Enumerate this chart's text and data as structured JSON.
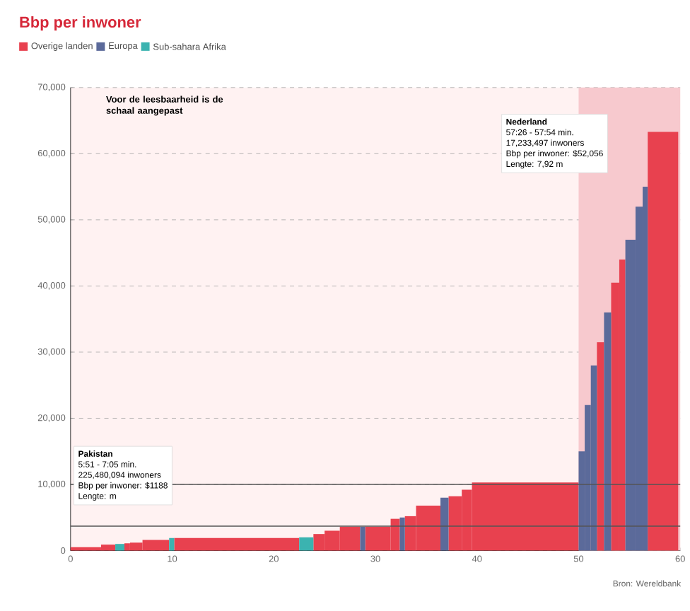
{
  "chart_data": {
    "type": "histogram",
    "title": "Bbp per inwoner",
    "bins": [
      0,
      3,
      4.4,
      5.3,
      5.85,
      7.08,
      9.7,
      10.2,
      22.5,
      23.9,
      25,
      26.5,
      28.5,
      29,
      31.5,
      32.4,
      32.9,
      34,
      36.4,
      37.2,
      38.5,
      39.5,
      50,
      50.6,
      51.2,
      51.8,
      52.5,
      53.2,
      54.0,
      54.6,
      55.6,
      56.3,
      56.8,
      59.8
    ],
    "series": [
      {
        "name": "Overige landen",
        "color": "#e8414f",
        "values": [
          500,
          900,
          null,
          1100,
          1200,
          1600,
          null,
          1900,
          null,
          2500,
          3000,
          3600,
          null,
          3600,
          4800,
          null,
          5200,
          6800,
          null,
          8200,
          9200,
          10300,
          null,
          null,
          null,
          31500,
          null,
          40500,
          44000,
          null,
          null,
          null,
          63300
        ]
      },
      {
        "name": "Europa",
        "color": "#5b6a9a",
        "values": [
          null,
          null,
          null,
          null,
          null,
          null,
          null,
          null,
          null,
          null,
          null,
          null,
          3600,
          null,
          null,
          5000,
          null,
          null,
          8000,
          null,
          null,
          null,
          15000,
          22000,
          28000,
          null,
          36000,
          null,
          null,
          47000,
          52000,
          55000,
          null
        ]
      },
      {
        "name": "Sub-sahara Afrika",
        "color": "#3bb3b0",
        "values": [
          null,
          null,
          1000,
          null,
          null,
          null,
          1900,
          null,
          2000,
          null,
          null,
          null,
          null,
          null,
          null,
          null,
          null,
          null,
          null,
          null,
          null,
          null,
          null,
          null,
          null,
          null,
          null,
          null,
          null,
          null,
          null,
          null,
          null
        ]
      }
    ],
    "xlim": [
      0,
      60
    ],
    "xticks": [
      0,
      10,
      20,
      30,
      40,
      50,
      60
    ],
    "ylim": [
      0,
      70000
    ],
    "yticks": [
      0,
      {
        "value": 10000,
        "label": "10,000"
      },
      {
        "value": 20000,
        "label": "20,000"
      },
      {
        "value": 30000,
        "label": "30,000"
      },
      {
        "value": 40000,
        "label": "40,000"
      },
      {
        "value": 50000,
        "label": "50,000"
      },
      {
        "value": 60000,
        "label": "60,000"
      },
      {
        "value": 70000,
        "label": "70,000"
      }
    ],
    "grid": "y",
    "legend": "top left",
    "bands": [
      {
        "axis": "x",
        "from": 50,
        "to": 60,
        "color": "#f7c9ce"
      }
    ],
    "ref_lines": [
      {
        "axis": "y",
        "value": 10000,
        "color": "#555555"
      },
      {
        "axis": "y",
        "value": 3700,
        "color": "#555555"
      }
    ],
    "annotations": [
      "Voor de leesbaarheid is de schaal aangepast",
      "Nederland",
      "57:26 - 57:54 min.",
      "17,233,497 inwoners",
      "Bbp per inwoner: $52,056",
      "Lengte: 7,92 m",
      "Pakistan",
      "5:51 - 7:05 min.",
      "225,480,094 inwoners",
      "Bbp per inwoner: $1188",
      "Lengte: m",
      "Bron: Wereldbank"
    ]
  }
}
